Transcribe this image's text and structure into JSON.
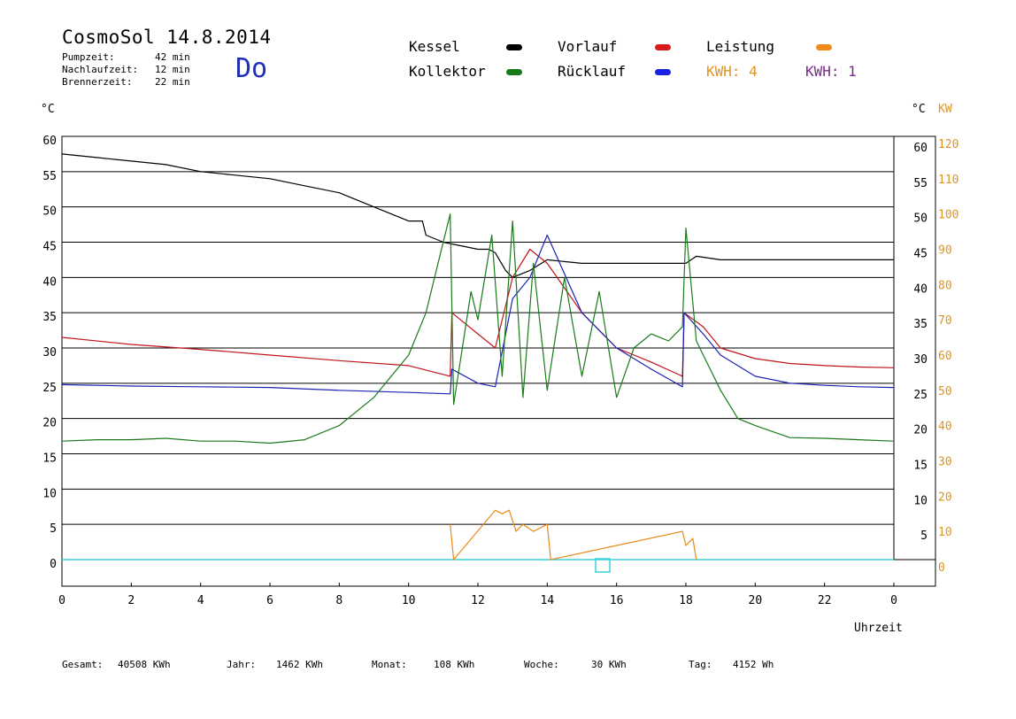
{
  "header": {
    "title": "CosmoSol 14.8.2014",
    "weekday": "Do",
    "stats": [
      {
        "label": "Pumpzeit:",
        "value": "42 min"
      },
      {
        "label": "Nachlaufzeit:",
        "value": "12 min"
      },
      {
        "label": "Brennerzeit:",
        "value": "22 min"
      }
    ]
  },
  "legend": {
    "kessel": "Kessel",
    "kollektor": "Kollektor",
    "vorlauf": "Vorlauf",
    "ruecklauf": "Rücklauf",
    "leistung": "Leistung",
    "kwh_orange": "KWH: 4",
    "kwh_purple": "KWH: 1"
  },
  "colors": {
    "kessel": "#000000",
    "kollektor": "#1a7a1a",
    "vorlauf": "#c0141b",
    "ruecklauf": "#1a22b4",
    "leistung": "#e8891a",
    "purple": "#7b2a8c",
    "cyan": "#39d0d8"
  },
  "footer": {
    "gesamt_label": "Gesamt:",
    "gesamt_value": "40508 KWh",
    "jahr_label": "Jahr:",
    "jahr_value": "1462 KWh",
    "monat_label": "Monat:",
    "monat_value": "108 KWh",
    "woche_label": "Woche:",
    "woche_value": "30 KWh",
    "tag_label": "Tag:",
    "tag_value": "4152 Wh"
  },
  "chart_data": {
    "type": "line",
    "xlabel": "Uhrzeit",
    "ylabel_left": "°C",
    "ylabel_right_temp": "°C",
    "ylabel_right_power": "KW",
    "x_ticks": [
      "0",
      "2",
      "4",
      "6",
      "8",
      "10",
      "12",
      "14",
      "16",
      "18",
      "20",
      "22",
      "0"
    ],
    "y_ticks_left": [
      "60",
      "55",
      "50",
      "45",
      "40",
      "35",
      "30",
      "25",
      "20",
      "15",
      "10",
      "5",
      "0"
    ],
    "y_ticks_right_temp": [
      "60",
      "55",
      "50",
      "45",
      "40",
      "35",
      "30",
      "25",
      "20",
      "15",
      "10",
      "5"
    ],
    "y_ticks_right_kw": [
      "120",
      "110",
      "100",
      "90",
      "80",
      "70",
      "60",
      "50",
      "40",
      "30",
      "20",
      "10",
      "0"
    ],
    "xlim": [
      0,
      24
    ],
    "ylim": [
      0,
      60
    ],
    "grid": "horizontal",
    "series": [
      {
        "name": "Kessel",
        "color": "#000000",
        "x": [
          0,
          1,
          2,
          3,
          4,
          5,
          6,
          7,
          8,
          9,
          10,
          10.4,
          10.5,
          11,
          11.5,
          12,
          12.3,
          12.5,
          12.8,
          13,
          13.5,
          14,
          15,
          16,
          17,
          18,
          18.3,
          19,
          20,
          21,
          22,
          23,
          24
        ],
        "y": [
          57.5,
          57,
          56.5,
          56,
          55,
          54.5,
          54,
          53,
          52,
          50,
          48,
          48,
          46,
          45,
          44.5,
          44,
          44,
          43.5,
          41,
          40,
          41,
          42.5,
          42,
          42,
          42,
          42,
          43,
          42.5,
          42.5,
          42.5,
          42.5,
          42.5,
          42.5
        ]
      },
      {
        "name": "Vorlauf",
        "color": "#c0141b",
        "x": [
          0,
          2,
          4,
          6,
          8,
          10,
          11.2,
          11.25,
          12,
          12.5,
          13,
          13.5,
          14,
          15,
          16,
          17,
          17.9,
          17.95,
          18.5,
          19,
          20,
          21,
          22,
          23,
          24
        ],
        "y": [
          31.5,
          30.5,
          29.8,
          29,
          28.2,
          27.5,
          26,
          35,
          32,
          30,
          40,
          44,
          42,
          35,
          30,
          28,
          26,
          35,
          33,
          30,
          28.5,
          27.8,
          27.5,
          27.3,
          27.2
        ]
      },
      {
        "name": "Rücklauf",
        "color": "#1a22b4",
        "x": [
          0,
          2,
          4,
          6,
          8,
          10,
          11.2,
          11.25,
          12,
          12.5,
          13,
          13.5,
          14,
          15,
          16,
          17,
          17.9,
          17.95,
          18.5,
          19,
          20,
          21,
          22,
          23,
          24
        ],
        "y": [
          24.8,
          24.6,
          24.5,
          24.4,
          24,
          23.7,
          23.5,
          27,
          25,
          24.5,
          37,
          40,
          46,
          35,
          30,
          27,
          24.5,
          35,
          32,
          29,
          26,
          25,
          24.7,
          24.5,
          24.4
        ]
      },
      {
        "name": "Kollektor",
        "color": "#1a7a1a",
        "x": [
          0,
          1,
          2,
          3,
          4,
          5,
          6,
          7,
          8,
          9,
          10,
          10.5,
          11,
          11.2,
          11.3,
          11.8,
          12,
          12.4,
          12.7,
          13,
          13.3,
          13.6,
          14,
          14.5,
          15,
          15.5,
          16,
          16.5,
          17,
          17.5,
          17.9,
          18,
          18.3,
          18.6,
          19,
          19.5,
          20,
          21,
          22,
          23,
          24
        ],
        "y": [
          16.8,
          17,
          17,
          17.2,
          16.8,
          16.8,
          16.5,
          17,
          19,
          23,
          29,
          35,
          45,
          49,
          22,
          38,
          34,
          46,
          26,
          48,
          23,
          42,
          24,
          40,
          26,
          38,
          23,
          30,
          32,
          31,
          33,
          47,
          31,
          28,
          24,
          20,
          19,
          17.3,
          17.2,
          17,
          16.8
        ]
      },
      {
        "name": "Leistung",
        "color": "#e8891a",
        "x": [
          11.2,
          11.3,
          12.5,
          12.7,
          12.9,
          13.1,
          13.3,
          13.6,
          14,
          14.1,
          17.9,
          18,
          18.2,
          18.3
        ],
        "y": [
          5,
          0,
          7,
          6.5,
          7,
          4,
          5,
          4,
          5,
          0,
          4,
          2,
          3,
          0
        ]
      }
    ]
  }
}
